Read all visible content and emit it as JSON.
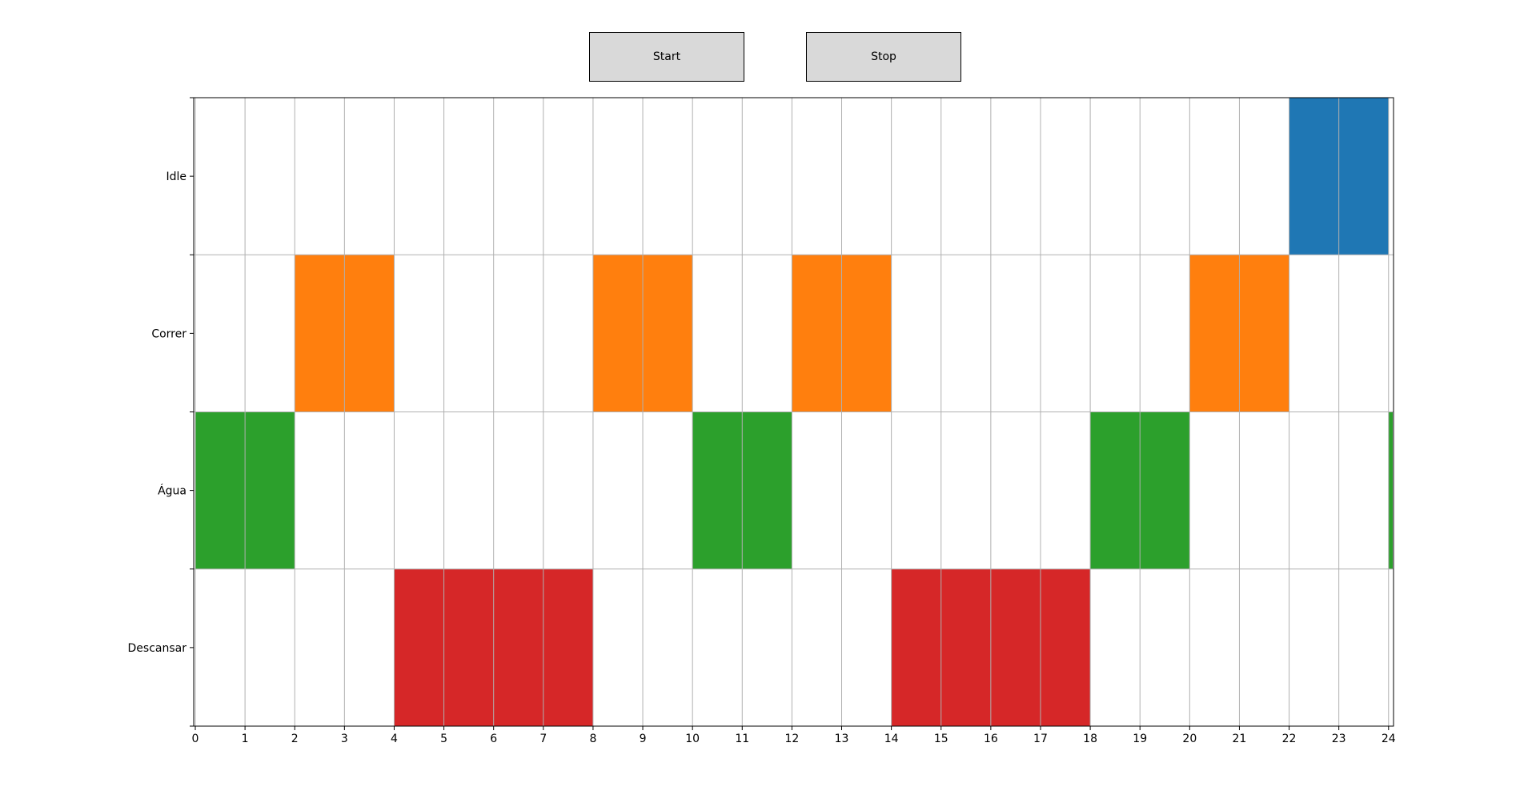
{
  "controls": {
    "start_label": "Start",
    "stop_label": "Stop"
  },
  "chart_data": {
    "type": "gantt",
    "categories": [
      "Descansar",
      "Água",
      "Correr",
      "Idle"
    ],
    "xlim": [
      0,
      24.1
    ],
    "xticks": [
      0,
      1,
      2,
      3,
      4,
      5,
      6,
      7,
      8,
      9,
      10,
      11,
      12,
      13,
      14,
      15,
      16,
      17,
      18,
      19,
      20,
      21,
      22,
      23,
      24
    ],
    "grid": true,
    "colors": {
      "Idle": "#1f77b4",
      "Correr": "#ff7f0e",
      "Água": "#2ca02c",
      "Descansar": "#d62728"
    },
    "segments": [
      {
        "task": "Água",
        "start": 0,
        "end": 2
      },
      {
        "task": "Correr",
        "start": 2,
        "end": 4
      },
      {
        "task": "Descansar",
        "start": 4,
        "end": 8
      },
      {
        "task": "Correr",
        "start": 8,
        "end": 10
      },
      {
        "task": "Água",
        "start": 10,
        "end": 12
      },
      {
        "task": "Correr",
        "start": 12,
        "end": 14
      },
      {
        "task": "Descansar",
        "start": 14,
        "end": 18
      },
      {
        "task": "Água",
        "start": 18,
        "end": 20
      },
      {
        "task": "Correr",
        "start": 20,
        "end": 22
      },
      {
        "task": "Idle",
        "start": 22,
        "end": 24
      },
      {
        "task": "Água",
        "start": 24,
        "end": 24.1
      }
    ]
  }
}
